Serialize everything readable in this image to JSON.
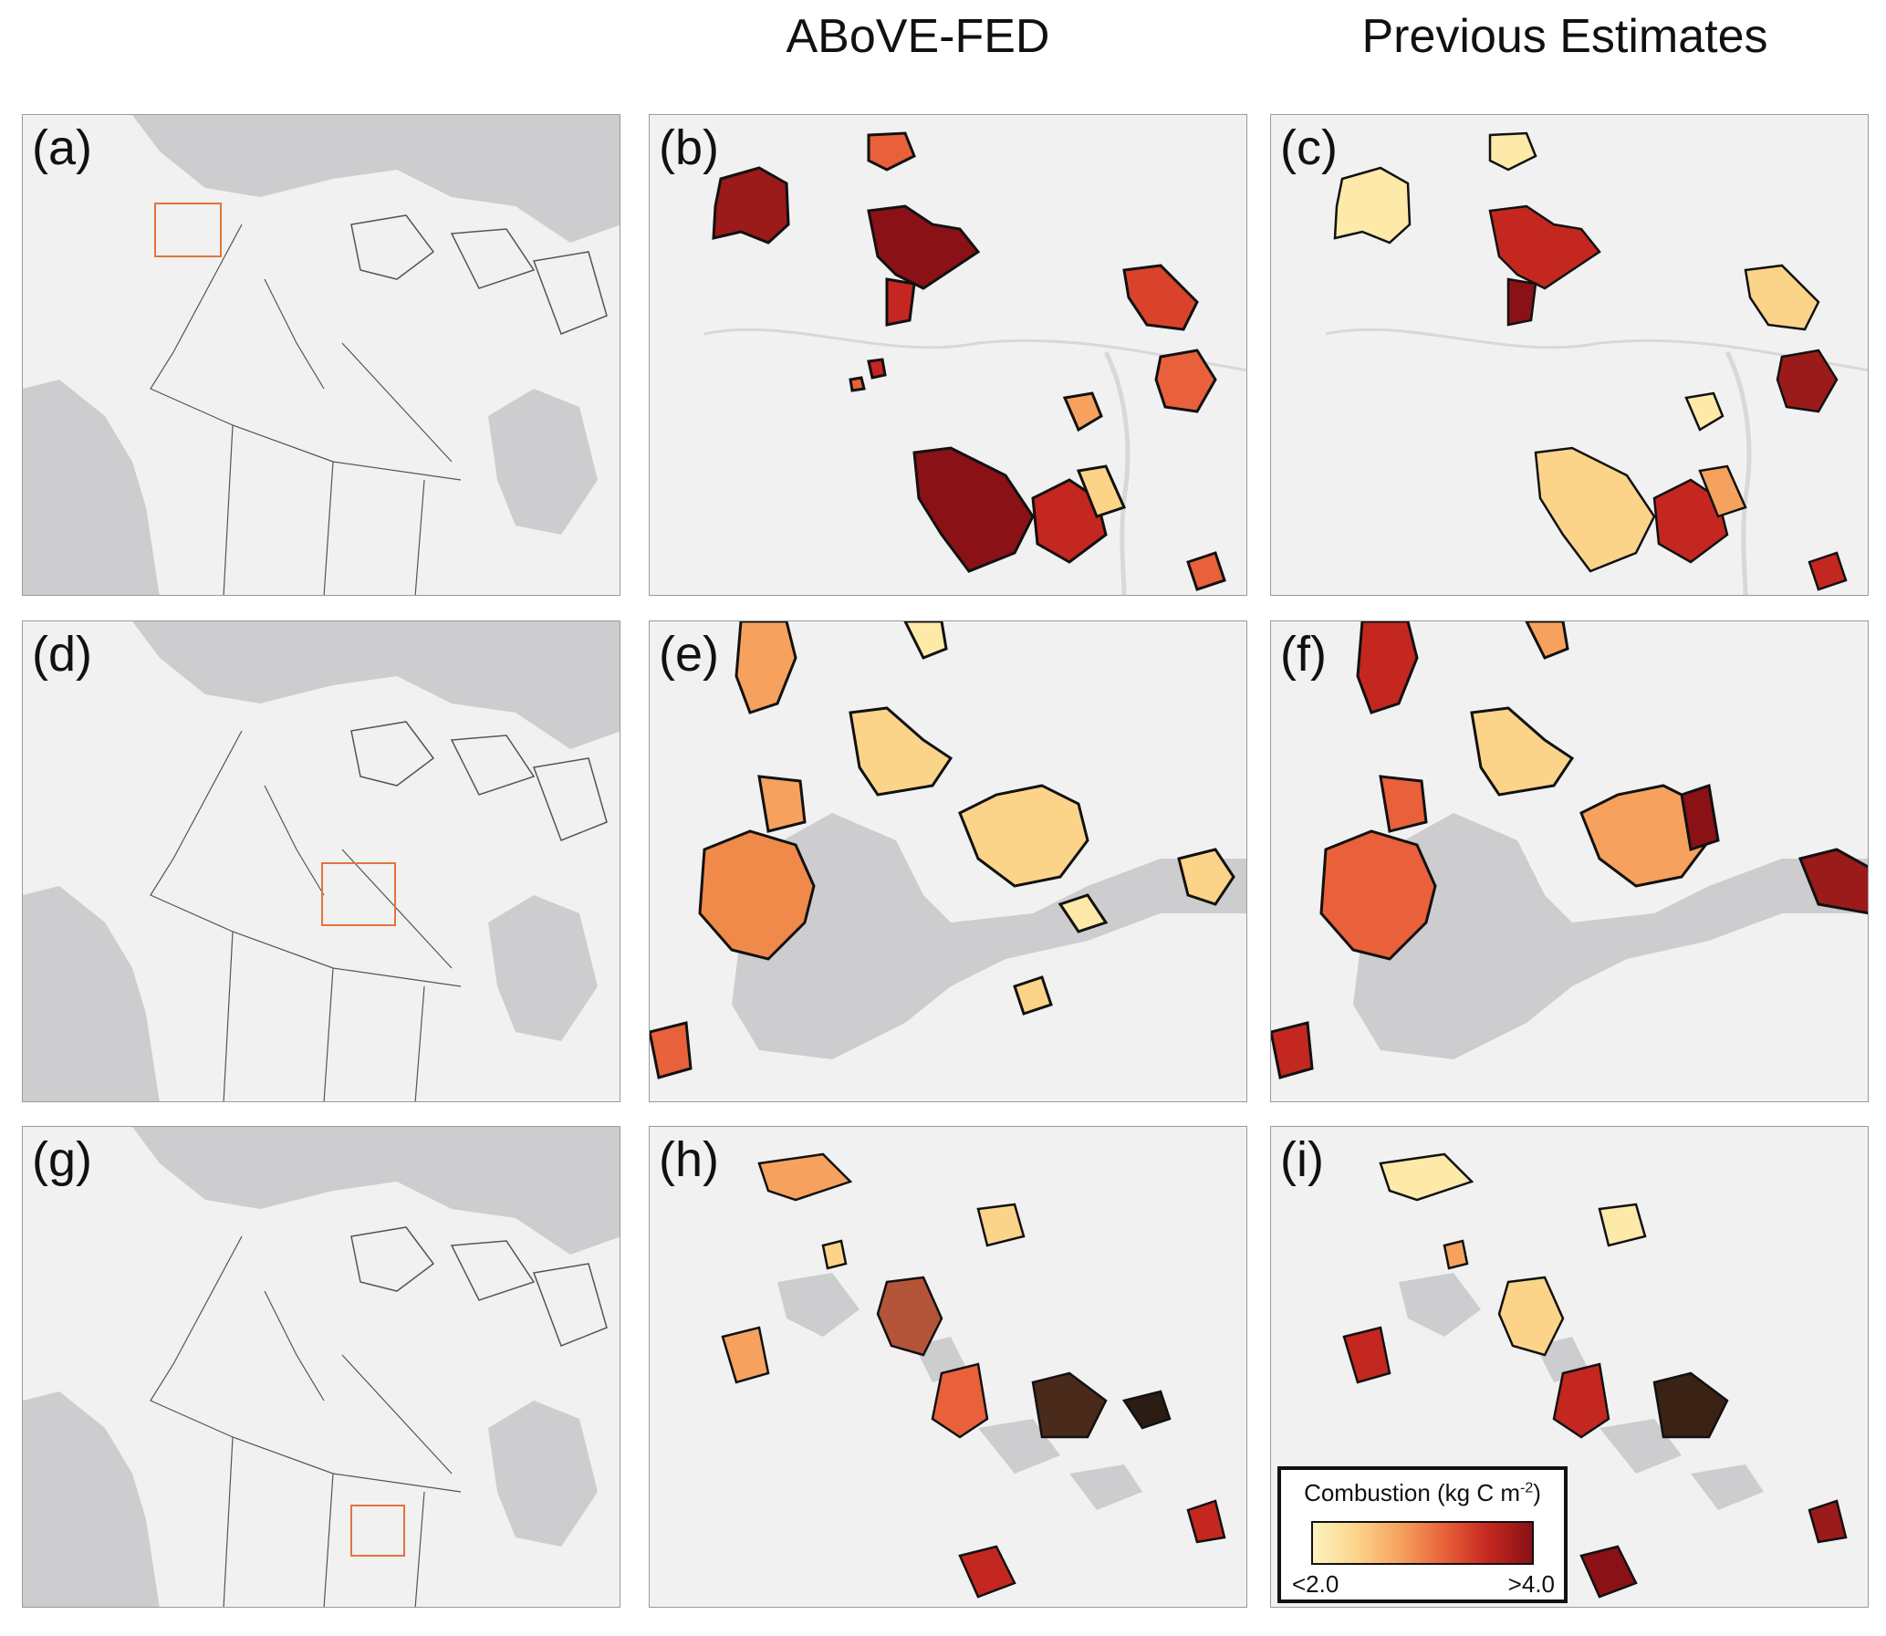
{
  "columns": {
    "above_fed": "ABoVE-FED",
    "previous": "Previous Estimates"
  },
  "panels": {
    "a": "(a)",
    "b": "(b)",
    "c": "(c)",
    "d": "(d)",
    "e": "(e)",
    "f": "(f)",
    "g": "(g)",
    "h": "(h)",
    "i": "(i)"
  },
  "legend": {
    "title_prefix": "Combustion (kg C m",
    "title_sup": "-2",
    "title_suffix": ")",
    "min_label": "<2.0",
    "max_label": ">4.0",
    "colors": [
      "#fdf3bf",
      "#fbd48a",
      "#f6a25e",
      "#e8613a",
      "#c4271f",
      "#8a1116"
    ]
  },
  "map_colors": {
    "land": "#f1f1f1",
    "ocean": "#cdcdcf",
    "boundary": "#555555",
    "inset_box": "#e4743c"
  }
}
